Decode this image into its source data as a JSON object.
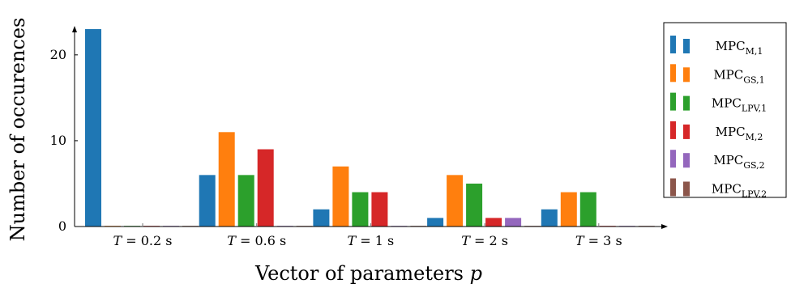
{
  "chart_data": {
    "type": "bar",
    "xlabel": "Vector of parameters p",
    "ylabel": "Number of occurences",
    "ylim": [
      0,
      23
    ],
    "yticks": [
      0,
      10,
      20
    ],
    "categories": [
      "T = 0.2 s",
      "T = 0.6 s",
      "T = 1 s",
      "T = 2 s",
      "T = 3 s"
    ],
    "series": [
      {
        "name": "MPC_M,1",
        "base": "MPC",
        "sub": "M,1",
        "color": "#1f77b4",
        "values": [
          23,
          6,
          2,
          1,
          2
        ]
      },
      {
        "name": "MPC_GS,1",
        "base": "MPC",
        "sub": "GS,1",
        "color": "#ff7f0e",
        "values": [
          0,
          11,
          7,
          6,
          4
        ]
      },
      {
        "name": "MPC_LPV,1",
        "base": "MPC",
        "sub": "LPV,1",
        "color": "#2ca02c",
        "values": [
          0,
          6,
          4,
          5,
          4
        ]
      },
      {
        "name": "MPC_M,2",
        "base": "MPC",
        "sub": "M,2",
        "color": "#d62728",
        "values": [
          0,
          9,
          4,
          1,
          0
        ]
      },
      {
        "name": "MPC_GS,2",
        "base": "MPC",
        "sub": "GS,2",
        "color": "#9467bd",
        "values": [
          0,
          0,
          0,
          1,
          0
        ]
      },
      {
        "name": "MPC_LPV,2",
        "base": "MPC",
        "sub": "LPV,2",
        "color": "#8c564b",
        "values": [
          0,
          0,
          0,
          0,
          0
        ]
      }
    ],
    "legend_position": "right",
    "grid": false
  }
}
